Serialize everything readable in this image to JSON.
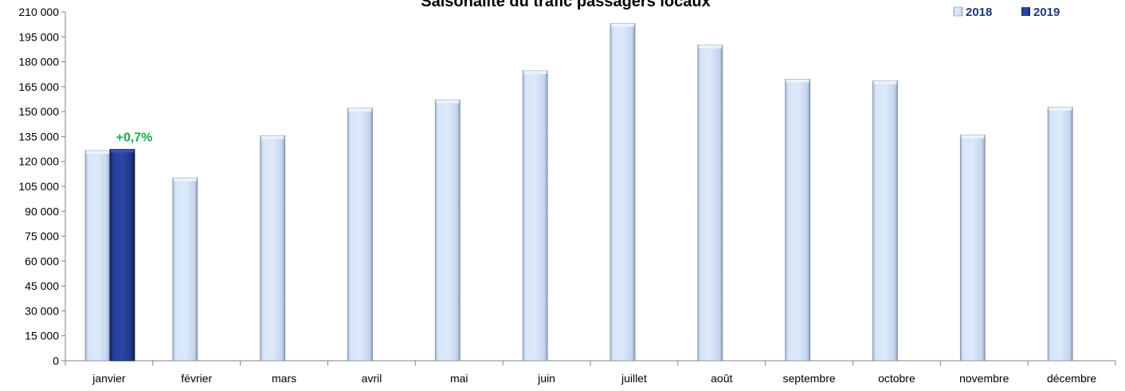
{
  "chart_data": {
    "type": "bar",
    "title": "Saisonalité du trafic passagers locaux",
    "xlabel": "",
    "ylabel": "",
    "ylim": [
      0,
      210000
    ],
    "yticks": [
      "0",
      "15 000",
      "30 000",
      "45 000",
      "60 000",
      "75 000",
      "90 000",
      "105 000",
      "120 000",
      "135 000",
      "150 000",
      "165 000",
      "180 000",
      "195 000",
      "210 000"
    ],
    "categories": [
      "janvier",
      "février",
      "mars",
      "avril",
      "mai",
      "juin",
      "juillet",
      "août",
      "septembre",
      "octobre",
      "novembre",
      "décembre"
    ],
    "series": [
      {
        "name": "2018",
        "color": "#cfe0f7",
        "values": [
          126500,
          110000,
          135500,
          152000,
          157000,
          174500,
          203000,
          190000,
          169500,
          168500,
          135800,
          152500
        ]
      },
      {
        "name": "2019",
        "color": "#1f3a8a",
        "values": [
          127300,
          null,
          null,
          null,
          null,
          null,
          null,
          null,
          null,
          null,
          null,
          null
        ]
      }
    ],
    "annotations": [
      {
        "text": "+0,7%",
        "category": "janvier",
        "series": "2019",
        "color": "#1daa4f"
      }
    ],
    "legend": {
      "position": "top-right",
      "labels": [
        "2018",
        "2019"
      ]
    },
    "grid": false
  }
}
